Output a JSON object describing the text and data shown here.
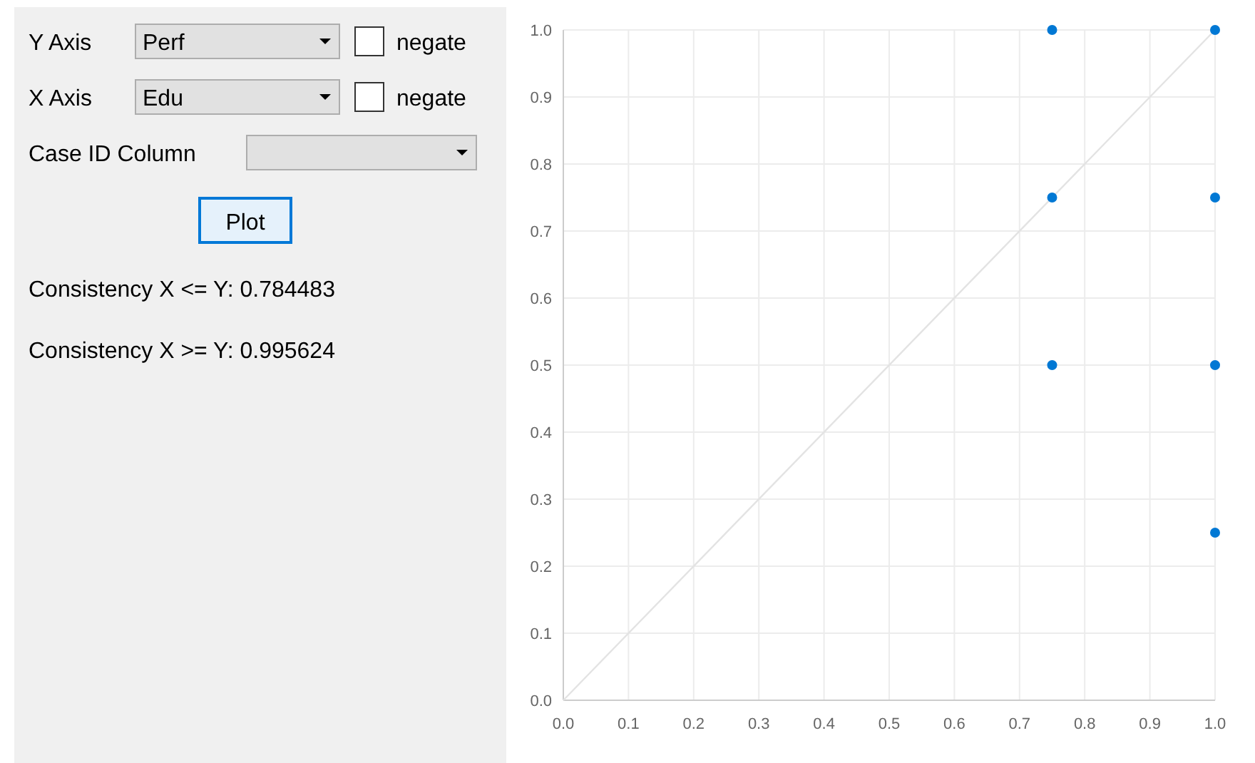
{
  "chart_data": {
    "type": "scatter",
    "marker": "circle",
    "series": [
      {
        "type": "scatter",
        "color": "#0078d4",
        "x": [
          0.75,
          1,
          0.75,
          1,
          0.75,
          1,
          1
        ],
        "values": [
          1,
          1,
          0.75,
          0.75,
          0.5,
          0.5,
          0.25
        ]
      },
      {
        "type": "line",
        "color": "#e3e3e3",
        "x": [
          0,
          1
        ],
        "values": [
          0,
          1
        ],
        "marker": "none"
      }
    ],
    "xlim": [
      0,
      1
    ],
    "ylim": [
      0,
      1
    ],
    "xticks": [
      {
        "value": 0,
        "label": "0.0"
      },
      0.1,
      0.2,
      0.3,
      0.4,
      0.5,
      0.6,
      0.7,
      0.8,
      0.9,
      {
        "value": 1,
        "label": "1.0"
      }
    ],
    "yticks": [
      {
        "value": 0,
        "label": "0.0"
      },
      0.1,
      0.2,
      0.3,
      0.4,
      0.5,
      0.6,
      0.7,
      0.8,
      0.9,
      {
        "value": 1,
        "label": "1.0"
      }
    ],
    "grid": true,
    "annotations": [
      "Y Axis",
      "Perf",
      "negate",
      "X Axis",
      "Edu",
      "negate",
      "Case ID Column",
      "Plot",
      "Consistency X <= Y: 0.784483",
      "Consistency X >= Y: 0.995624"
    ]
  }
}
